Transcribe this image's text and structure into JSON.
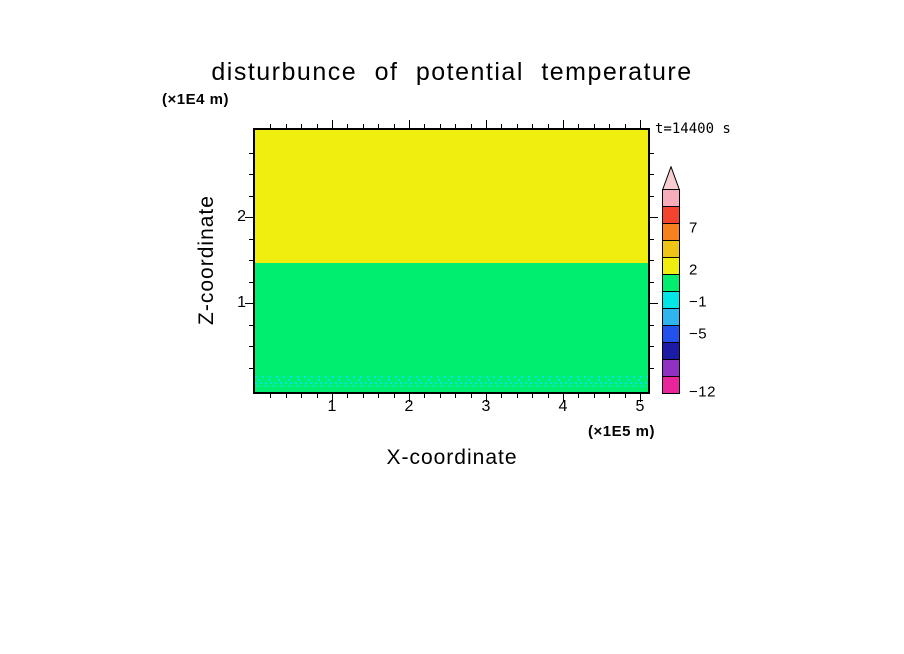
{
  "title": "disturbunce of potential temperature",
  "time_label": "t=14400 s",
  "axes": {
    "x": {
      "label": "X-coordinate",
      "units": "(×1E5 m)",
      "tick_labels": [
        "1",
        "2",
        "3",
        "4",
        "5"
      ]
    },
    "z": {
      "label": "Z-coordinate",
      "units": "(×1E4 m)",
      "tick_labels": [
        "1",
        "2"
      ]
    }
  },
  "colors": {
    "background": "#FFFFFF",
    "frame": "#000000",
    "yellow": "#F0EE0E",
    "green": "#00EE70",
    "cyan": "#00E6E6"
  },
  "colorbar": {
    "arrow_color": "#F7CDD2",
    "segment_colors": [
      "#F6ADB9",
      "#F4432F",
      "#F6821F",
      "#EEC417",
      "#F0EE0E",
      "#00EE70",
      "#00E6E6",
      "#2FB4F0",
      "#2351EC",
      "#1B1BA6",
      "#9031C4",
      "#E8259D"
    ],
    "labels": [
      "7",
      "2",
      "−1",
      "−5",
      "−12"
    ]
  },
  "chart_data": {
    "type": "heatmap",
    "title": "disturbunce of potential temperature",
    "xlabel": "X-coordinate",
    "x_units": "×1E5 m",
    "ylabel": "Z-coordinate",
    "y_units": "×1E4 m",
    "x_range": [
      0,
      5.1
    ],
    "z_range": [
      0,
      3.05
    ],
    "x_tick_values": [
      1,
      2,
      3,
      4,
      5
    ],
    "z_tick_values": [
      1,
      2
    ],
    "time_seconds": 14400,
    "colorbar_boundaries": [
      7,
      2,
      -1,
      -5,
      -12
    ],
    "regions": [
      {
        "description": "upper layer, uniform positive disturbance",
        "z_from": 1.5,
        "z_to": 3.05,
        "approx_value_band": "2 to 7",
        "color": "yellow"
      },
      {
        "description": "lower layer, near-zero disturbance",
        "z_from": 0.25,
        "z_to": 1.5,
        "approx_value_band": "-1 to 2",
        "color": "green"
      },
      {
        "description": "thin speckled band of negative disturbance near the surface",
        "z_from": 0.1,
        "z_to": 0.25,
        "approx_value_band": "-5 to -1",
        "color": "cyan dots on green"
      }
    ],
    "legend_position": "right",
    "grid": false
  }
}
